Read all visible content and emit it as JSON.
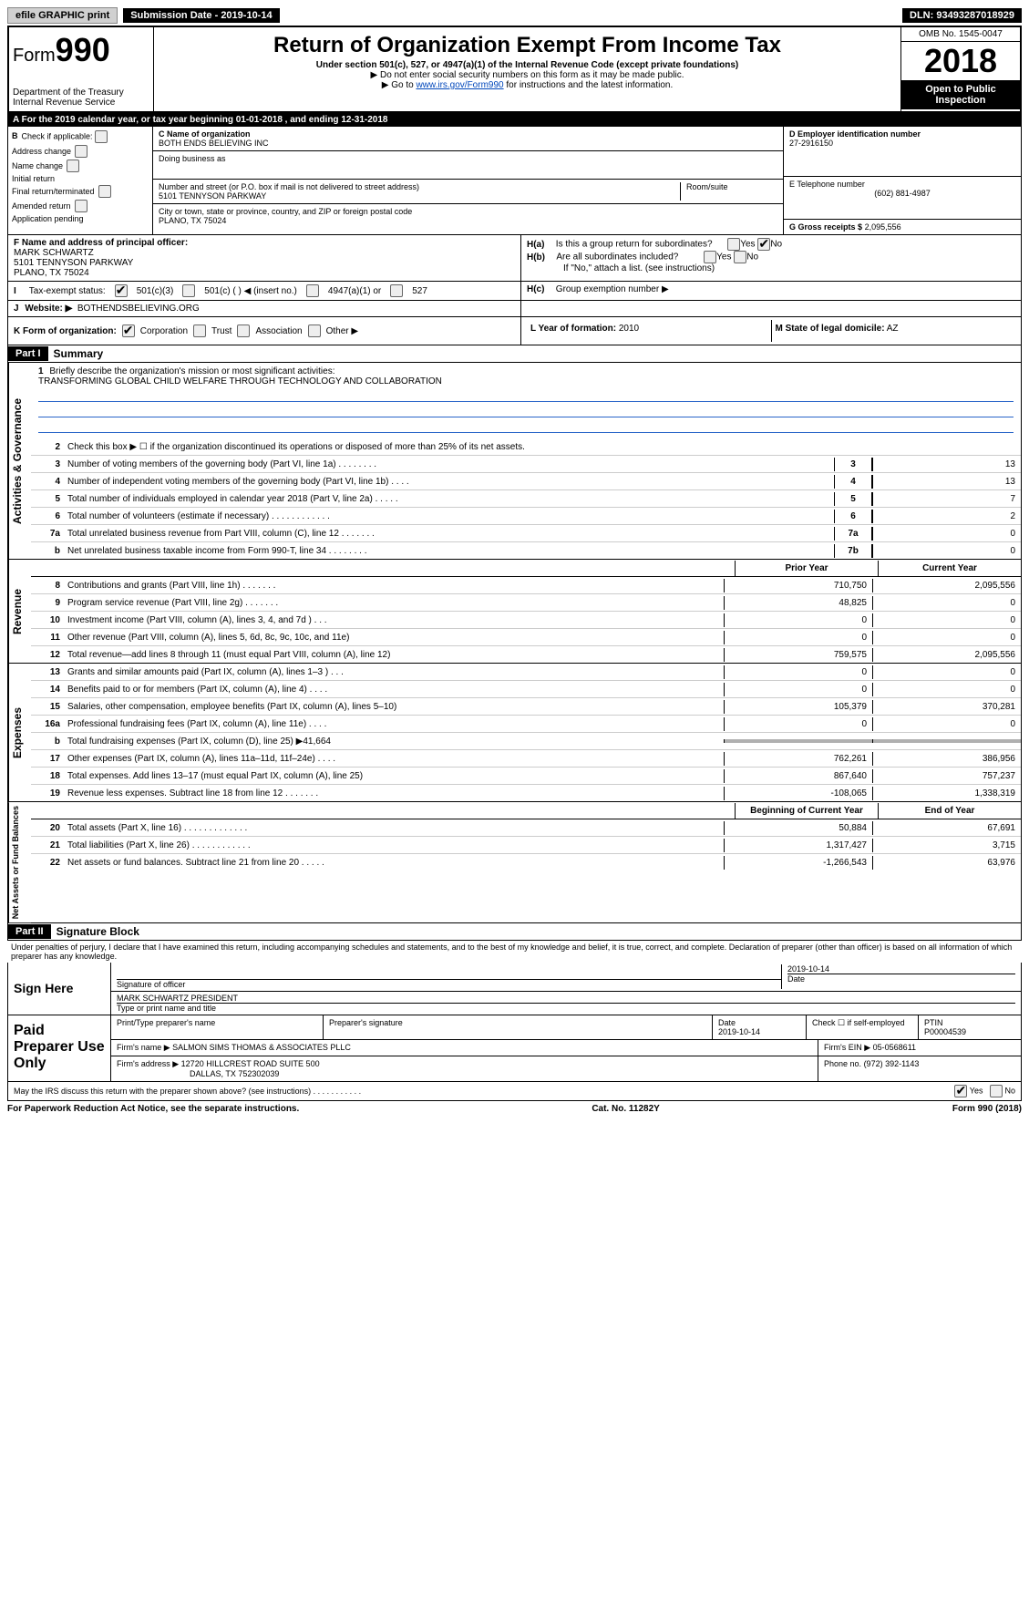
{
  "top": {
    "efile": "efile GRAPHIC print",
    "submission": "Submission Date - 2019-10-14",
    "dln": "DLN: 93493287018929"
  },
  "header": {
    "form_label": "Form",
    "form_num": "990",
    "dept": "Department of the Treasury",
    "irs": "Internal Revenue Service",
    "title": "Return of Organization Exempt From Income Tax",
    "sub": "Under section 501(c), 527, or 4947(a)(1) of the Internal Revenue Code (except private foundations)",
    "note1": "▶ Do not enter social security numbers on this form as it may be made public.",
    "note2_pre": "▶ Go to ",
    "note2_link": "www.irs.gov/Form990",
    "note2_post": " for instructions and the latest information.",
    "omb": "OMB No. 1545-0047",
    "year": "2018",
    "open": "Open to Public Inspection"
  },
  "sectionA": "A   For the 2019 calendar year, or tax year beginning 01-01-2018       , and ending 12-31-2018",
  "colB": {
    "label": "Check if applicable:",
    "items": [
      "Address change",
      "Name change",
      "Initial return",
      "Final return/terminated",
      "Amended return",
      "Application pending"
    ]
  },
  "colC": {
    "name_label": "C Name of organization",
    "name": "BOTH ENDS BELIEVING INC",
    "dba_label": "Doing business as",
    "street_label": "Number and street (or P.O. box if mail is not delivered to street address)",
    "street": "5101 TENNYSON PARKWAY",
    "room_label": "Room/suite",
    "city_label": "City or town, state or province, country, and ZIP or foreign postal code",
    "city": "PLANO, TX  75024"
  },
  "colD": {
    "ein_label": "D Employer identification number",
    "ein": "27-2916150",
    "phone_label": "E Telephone number",
    "phone": "(602) 881-4987",
    "gross_label": "G Gross receipts $",
    "gross": "2,095,556"
  },
  "rowF": {
    "label": "F Name and address of principal officer:",
    "name": "MARK SCHWARTZ",
    "street": "5101 TENNYSON PARKWAY",
    "city": "PLANO, TX  75024",
    "ha": "Is this a group return for subordinates?",
    "hb": "Are all subordinates included?",
    "hb_note": "If \"No,\" attach a list. (see instructions)",
    "hc": "Group exemption number ▶"
  },
  "taxStatus": {
    "label": "Tax-exempt status:",
    "opts": [
      "501(c)(3)",
      "501(c) (  ) ◀ (insert no.)",
      "4947(a)(1) or",
      "527"
    ]
  },
  "rowJ": {
    "label": "Website: ▶",
    "value": "BOTHENDSBELIEVING.ORG"
  },
  "rowK": {
    "label": "K Form of organization:",
    "opts": [
      "Corporation",
      "Trust",
      "Association",
      "Other ▶"
    ],
    "year_label": "L Year of formation:",
    "year": "2010",
    "state_label": "M State of legal domicile:",
    "state": "AZ"
  },
  "part1": {
    "header": "Part I",
    "title": "Summary",
    "mission_label": "Briefly describe the organization's mission or most significant activities:",
    "mission": "TRANSFORMING GLOBAL CHILD WELFARE THROUGH TECHNOLOGY AND COLLABORATION",
    "line2": "Check this box ▶ ☐ if the organization discontinued its operations or disposed of more than 25% of its net assets.",
    "governance": [
      {
        "n": "3",
        "d": "Number of voting members of the governing body (Part VI, line 1a)   .    .    .    .    .    .    .    .",
        "k": "3",
        "v": "13"
      },
      {
        "n": "4",
        "d": "Number of independent voting members of the governing body (Part VI, line 1b)   .    .    .    .",
        "k": "4",
        "v": "13"
      },
      {
        "n": "5",
        "d": "Total number of individuals employed in calendar year 2018 (Part V, line 2a)   .    .    .    .    .",
        "k": "5",
        "v": "7"
      },
      {
        "n": "6",
        "d": "Total number of volunteers (estimate if necessary)   .    .    .    .    .    .    .    .    .    .    .    .",
        "k": "6",
        "v": "2"
      },
      {
        "n": "7a",
        "d": "Total unrelated business revenue from Part VIII, column (C), line 12   .    .    .    .    .    .    .",
        "k": "7a",
        "v": "0"
      },
      {
        "n": "b",
        "d": "Net unrelated business taxable income from Form 990-T, line 34   .    .    .    .    .    .    .    .",
        "k": "7b",
        "v": "0"
      }
    ],
    "prior_year": "Prior Year",
    "current_year": "Current Year",
    "revenue": [
      {
        "n": "8",
        "d": "Contributions and grants (Part VIII, line 1h)   .    .    .    .    .    .    .",
        "p": "710,750",
        "c": "2,095,556"
      },
      {
        "n": "9",
        "d": "Program service revenue (Part VIII, line 2g)    .    .    .    .    .    .    .",
        "p": "48,825",
        "c": "0"
      },
      {
        "n": "10",
        "d": "Investment income (Part VIII, column (A), lines 3, 4, and 7d )   .    .    .",
        "p": "0",
        "c": "0"
      },
      {
        "n": "11",
        "d": "Other revenue (Part VIII, column (A), lines 5, 6d, 8c, 9c, 10c, and 11e)",
        "p": "0",
        "c": "0"
      },
      {
        "n": "12",
        "d": "Total revenue—add lines 8 through 11 (must equal Part VIII, column (A), line 12)",
        "p": "759,575",
        "c": "2,095,556"
      }
    ],
    "expenses": [
      {
        "n": "13",
        "d": "Grants and similar amounts paid (Part IX, column (A), lines 1–3 )   .    .    .",
        "p": "0",
        "c": "0"
      },
      {
        "n": "14",
        "d": "Benefits paid to or for members (Part IX, column (A), line 4)   .    .    .    .",
        "p": "0",
        "c": "0"
      },
      {
        "n": "15",
        "d": "Salaries, other compensation, employee benefits (Part IX, column (A), lines 5–10)",
        "p": "105,379",
        "c": "370,281"
      },
      {
        "n": "16a",
        "d": "Professional fundraising fees (Part IX, column (A), line 11e)   .    .    .    .",
        "p": "0",
        "c": "0"
      },
      {
        "n": "b",
        "d": "Total fundraising expenses (Part IX, column (D), line 25) ▶41,664",
        "p": "",
        "c": "",
        "shaded": true
      },
      {
        "n": "17",
        "d": "Other expenses (Part IX, column (A), lines 11a–11d, 11f–24e)   .    .    .    .",
        "p": "762,261",
        "c": "386,956"
      },
      {
        "n": "18",
        "d": "Total expenses. Add lines 13–17 (must equal Part IX, column (A), line 25)",
        "p": "867,640",
        "c": "757,237"
      },
      {
        "n": "19",
        "d": "Revenue less expenses. Subtract line 18 from line 12   .    .    .    .    .    .    .",
        "p": "-108,065",
        "c": "1,338,319"
      }
    ],
    "beg_year": "Beginning of Current Year",
    "end_year": "End of Year",
    "netassets": [
      {
        "n": "20",
        "d": "Total assets (Part X, line 16)   .    .    .    .    .    .    .    .    .    .    .    .    .",
        "p": "50,884",
        "c": "67,691"
      },
      {
        "n": "21",
        "d": "Total liabilities (Part X, line 26)   .    .    .    .    .    .    .    .    .    .    .    .",
        "p": "1,317,427",
        "c": "3,715"
      },
      {
        "n": "22",
        "d": "Net assets or fund balances. Subtract line 21 from line 20   .    .    .    .    .",
        "p": "-1,266,543",
        "c": "63,976"
      }
    ]
  },
  "part2": {
    "header": "Part II",
    "title": "Signature Block",
    "declare": "Under penalties of perjury, I declare that I have examined this return, including accompanying schedules and statements, and to the best of my knowledge and belief, it is true, correct, and complete. Declaration of preparer (other than officer) is based on all information of which preparer has any knowledge.",
    "sign_here": "Sign Here",
    "sig_officer": "Signature of officer",
    "sig_date": "2019-10-14",
    "date_label": "Date",
    "officer_name": "MARK SCHWARTZ  PRESIDENT",
    "type_name": "Type or print name and title",
    "paid": "Paid Preparer Use Only",
    "prep_name_label": "Print/Type preparer's name",
    "prep_sig_label": "Preparer's signature",
    "prep_date_label": "Date",
    "prep_date": "2019-10-14",
    "check_self": "Check ☐ if self-employed",
    "ptin_label": "PTIN",
    "ptin": "P00004539",
    "firm_name_label": "Firm's name    ▶",
    "firm_name": "SALMON SIMS THOMAS & ASSOCIATES PLLC",
    "firm_ein_label": "Firm's EIN ▶",
    "firm_ein": "05-0568611",
    "firm_addr_label": "Firm's address ▶",
    "firm_addr1": "12720 HILLCREST ROAD SUITE 500",
    "firm_addr2": "DALLAS, TX  752302039",
    "firm_phone_label": "Phone no.",
    "firm_phone": "(972) 392-1143",
    "discuss": "May the IRS discuss this return with the preparer shown above? (see instructions)   .    .    .    .    .    .    .    .    .    .    ."
  },
  "footer": {
    "left": "For Paperwork Reduction Act Notice, see the separate instructions.",
    "center": "Cat. No. 11282Y",
    "right": "Form 990 (2018)"
  }
}
